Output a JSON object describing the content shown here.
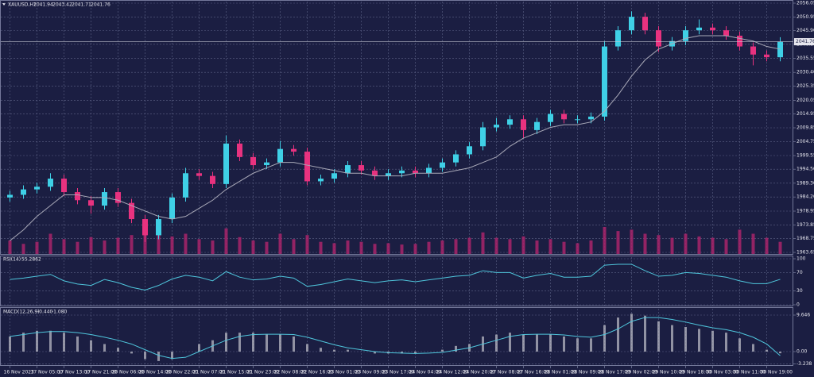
{
  "chart_data": [
    {
      "type": "candlestick",
      "title": "XAUUSD,H1",
      "header_values": [
        2041.94,
        2043.42,
        2041.71,
        2041.76
      ],
      "categories": [
        "16 Nov 2023",
        null,
        "17 Nov 05:00",
        null,
        "17 Nov 13:00",
        null,
        "17 Nov 21:00",
        null,
        "20 Nov 06:00",
        null,
        "20 Nov 14:00",
        null,
        "20 Nov 22:00",
        null,
        "21 Nov 07:00",
        null,
        "21 Nov 15:00",
        null,
        "21 Nov 23:00",
        null,
        "22 Nov 08:00",
        null,
        "22 Nov 16:00",
        null,
        "23 Nov 01:00",
        null,
        "23 Nov 09:00",
        null,
        "23 Nov 17:00",
        null,
        "24 Nov 04:00",
        null,
        "24 Nov 12:00",
        null,
        "24 Nov 20:00",
        null,
        "27 Nov 08:00",
        null,
        "27 Nov 16:00",
        null,
        "28 Nov 01:00",
        null,
        "28 Nov 09:00",
        null,
        "28 Nov 17:00",
        null,
        "29 Nov 02:00",
        null,
        "29 Nov 10:00",
        null,
        "29 Nov 18:00",
        null,
        "30 Nov 03:00",
        null,
        "30 Nov 11:00",
        null,
        "30 Nov 19:00",
        null
      ],
      "open": [
        1984,
        1985,
        1987,
        1988,
        1991,
        1986,
        1983,
        1981,
        1986,
        1982,
        1976,
        1970,
        1976,
        1984,
        1993,
        1992,
        1989,
        2004,
        1999,
        1996,
        1997,
        2002,
        2001,
        1990,
        1991,
        1993,
        1996,
        1994,
        1992,
        1993,
        1994,
        1993,
        1995,
        1997,
        2000,
        2003,
        2010,
        2011,
        2013,
        2009,
        2012,
        2015,
        2013,
        2013,
        2014,
        2040,
        2046,
        2051,
        2046,
        2040,
        2042,
        2046,
        2047,
        2046,
        2044,
        2040,
        2037,
        2036
      ],
      "high": [
        1986.5,
        1988.5,
        1989.5,
        1993,
        1992.5,
        1987.5,
        1984.5,
        1987.5,
        1987.5,
        1983.5,
        1977.5,
        1977.5,
        1985.5,
        1995,
        1994.5,
        1993.5,
        2007,
        2005.5,
        2000.5,
        1998.5,
        2005,
        2003.5,
        2002.5,
        1992.5,
        1994.5,
        1997.5,
        1997.5,
        1995.5,
        1994.5,
        1995.5,
        1995.5,
        1996.5,
        1998.5,
        2001.5,
        2004.5,
        2012,
        2013.5,
        2014.5,
        2014.5,
        2013.5,
        2016.5,
        2016.5,
        2014.5,
        2015.5,
        2042,
        2047.5,
        2053,
        2052.5,
        2047.5,
        2043.5,
        2047.5,
        2050,
        2048.5,
        2047.5,
        2045.5,
        2041.5,
        2038.5,
        2043.42
      ],
      "low": [
        1982.5,
        1983.5,
        1985.5,
        1986.5,
        1984.5,
        1981.5,
        1978,
        1979.5,
        1980.5,
        1974.5,
        1967.5,
        1968.5,
        1974.5,
        1982.5,
        1990.5,
        1987.5,
        1987.5,
        1997.5,
        1994.5,
        1994.5,
        1995.5,
        1999.5,
        1988.5,
        1988.5,
        1989.5,
        1991.5,
        1992.5,
        1990.5,
        1990.5,
        1991.5,
        1991.5,
        1991.5,
        1993.5,
        1995.5,
        1998.5,
        2001.5,
        2008.5,
        2009.5,
        2006,
        2007.5,
        2010.5,
        2011.5,
        2011.5,
        2011.5,
        2012.5,
        2038.5,
        2044.5,
        2044.5,
        2038,
        2038.5,
        2040.5,
        2044.5,
        2044.5,
        2042.5,
        2038.5,
        2033,
        2034.5,
        2034.5
      ],
      "close": [
        1985,
        1987,
        1988,
        1991,
        1986,
        1983,
        1981,
        1986,
        1982,
        1976,
        1970,
        1976,
        1984,
        1993,
        1992,
        1989,
        2004,
        1999,
        1996,
        1997,
        2002,
        2001,
        1990,
        1991,
        1993,
        1996,
        1994,
        1992,
        1993,
        1994,
        1993,
        1995,
        1997,
        2000,
        2003,
        2010,
        2011,
        2013,
        2009,
        2012,
        2015,
        2013,
        2013,
        2014,
        2040,
        2046,
        2051,
        2046,
        2040,
        2042,
        2046,
        2047,
        2046,
        2044,
        2040,
        2037,
        2036,
        2041.76
      ],
      "up_color": "#3fd0e6",
      "down_color": "#e8327f",
      "ma": {
        "color": "#a9a9b8",
        "values": [
          1968,
          1972,
          1977,
          1981,
          1985,
          1985,
          1984,
          1984,
          1983,
          1981,
          1979,
          1977,
          1976,
          1977,
          1980,
          1983,
          1987,
          1990,
          1993,
          1995,
          1997,
          1997,
          1996,
          1995,
          1994,
          1993,
          1993,
          1992,
          1992,
          1992,
          1993,
          1993,
          1993,
          1994,
          1995,
          1997,
          1999,
          2003,
          2006,
          2008,
          2010,
          2011,
          2011,
          2012,
          2016,
          2022,
          2029,
          2035,
          2039,
          2041,
          2043,
          2044,
          2044,
          2044,
          2043,
          2042,
          2040,
          2039
        ]
      },
      "volume": {
        "color": "#a8246a",
        "values": [
          20,
          15,
          18,
          30,
          22,
          18,
          25,
          20,
          24,
          28,
          35,
          30,
          26,
          30,
          22,
          20,
          38,
          25,
          20,
          18,
          30,
          22,
          28,
          18,
          16,
          20,
          18,
          15,
          16,
          14,
          15,
          18,
          20,
          22,
          24,
          32,
          24,
          22,
          26,
          20,
          22,
          18,
          16,
          20,
          40,
          34,
          36,
          30,
          28,
          24,
          30,
          26,
          24,
          22,
          36,
          30,
          24,
          18
        ]
      },
      "ylim": [
        1963.65,
        2056.05
      ],
      "yticks": [
        1963.65,
        1968.75,
        1973.85,
        1978.95,
        {
          "value": 1984.2,
          "label": "1984.20"
        },
        {
          "value": 1989.3,
          "label": "1989.30"
        },
        {
          "value": 1994.5,
          "label": "1994.50"
        },
        1999.55,
        2004.75,
        2009.85,
        2014.95,
        2020.05,
        2025.35,
        {
          "value": 2030.4,
          "label": "2030.40"
        },
        2035.55,
        {
          "value": 2040.8,
          "label": "2040.80"
        },
        {
          "value": 2045.9,
          "label": "2045.90"
        },
        2050.95,
        2056.05
      ],
      "grid": true
    },
    {
      "type": "line",
      "title": "RSI(14)",
      "color": "#4fc6dc",
      "values": [
        55,
        58,
        62,
        66,
        52,
        45,
        42,
        55,
        48,
        38,
        32,
        42,
        56,
        64,
        60,
        52,
        72,
        60,
        54,
        56,
        62,
        58,
        40,
        44,
        50,
        56,
        52,
        48,
        52,
        54,
        50,
        54,
        58,
        62,
        64,
        74,
        70,
        70,
        58,
        64,
        68,
        60,
        60,
        62,
        86,
        88,
        88,
        74,
        62,
        64,
        70,
        68,
        64,
        60,
        52,
        46,
        46,
        55.2862
      ],
      "ylim": [
        0,
        100
      ],
      "yticks": [
        0,
        30,
        70,
        100
      ],
      "grid": true
    },
    {
      "type": "macd",
      "title": "MACD(12,26,9)",
      "histogram_label": "-0.440",
      "signal_label": "-1.080",
      "histogram_color": "#b9b9c4",
      "signal_color": "#4fc6dc",
      "histogram": [
        4,
        5,
        5.5,
        5.5,
        5,
        4,
        3,
        2,
        1,
        -0.5,
        -2,
        -2.5,
        -2,
        0,
        2,
        3,
        5,
        5,
        5,
        4.5,
        4.5,
        4,
        2,
        1,
        0.5,
        0.5,
        0,
        -0.5,
        -0.5,
        -0.5,
        -0.5,
        0,
        0.5,
        1.5,
        2,
        4,
        4.5,
        5,
        4.5,
        4.5,
        4.5,
        4,
        3.5,
        3.5,
        7,
        9,
        10,
        9.5,
        8,
        7,
        6.5,
        6,
        5.5,
        5,
        3.5,
        2,
        0.5,
        -0.44
      ],
      "signal": [
        4,
        4.5,
        5,
        5.3,
        5.3,
        5,
        4.5,
        3.8,
        3,
        2,
        0.5,
        -1,
        -1.8,
        -1.5,
        0,
        1.5,
        3,
        4,
        4.5,
        4.6,
        4.6,
        4.5,
        3.8,
        2.8,
        1.8,
        1,
        0.5,
        0,
        -0.3,
        -0.4,
        -0.5,
        -0.4,
        -0.2,
        0.4,
        1,
        2,
        3,
        4,
        4.5,
        4.6,
        4.6,
        4.4,
        4,
        3.8,
        4.5,
        6,
        8,
        9,
        9,
        8.5,
        7.8,
        7,
        6.3,
        5.8,
        5,
        3.8,
        2,
        -1.08
      ],
      "ylim": [
        -3.238,
        9.646
      ],
      "yticks": [
        -3.238,
        {
          "value": 0,
          "label": "0.00"
        },
        9.646
      ],
      "grid": true
    }
  ]
}
